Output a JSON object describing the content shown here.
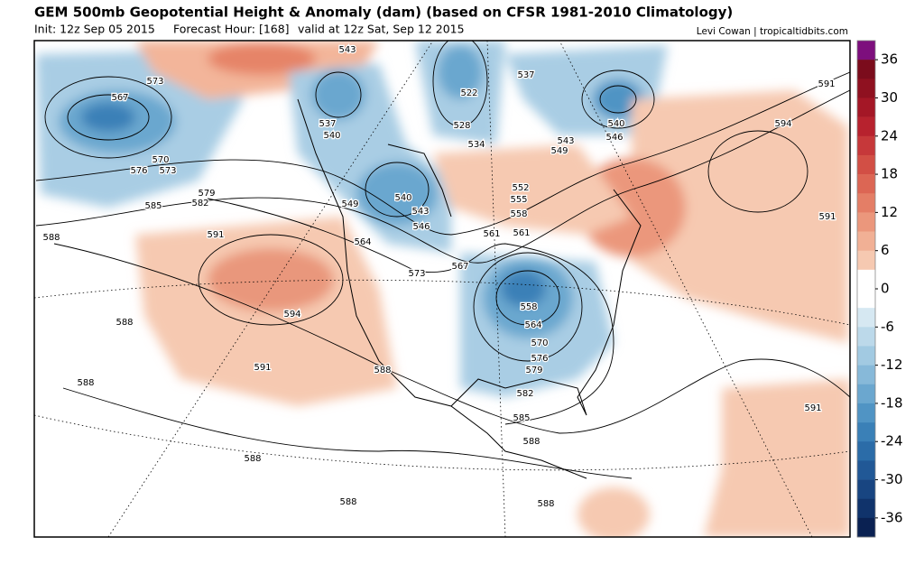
{
  "header": {
    "title": "GEM 500mb Geopotential Height & Anomaly (dam) (based on CFSR 1981-2010 Climatology)",
    "init": "Init: 12z Sep 05 2015",
    "forecast_hour": "Forecast Hour: [168]",
    "valid": "valid at 12z Sat, Sep 12 2015",
    "credit": "Levi Cowan | tropicaltidbits.com"
  },
  "colorbar": {
    "lim": [
      -39,
      39
    ],
    "ticks": [
      36,
      30,
      24,
      18,
      12,
      6,
      0,
      -6,
      -12,
      -18,
      -24,
      -30,
      -36
    ],
    "colors": [
      "#7d0f7d",
      "#7b0c1c",
      "#8f1120",
      "#a41726",
      "#b7222e",
      "#c6383a",
      "#d24f45",
      "#dc6654",
      "#e47e66",
      "#eb977c",
      "#f1b095",
      "#f6c9b1",
      "#ffffff",
      "#ffffff",
      "#d6e8f2",
      "#bcd9ea",
      "#a2cae2",
      "#87b9d9",
      "#6ba7cf",
      "#5094c4",
      "#3a80b7",
      "#2b6ca8",
      "#215896",
      "#184581",
      "#10336b",
      "#0a2152"
    ]
  },
  "contour_labels": [
    "543",
    "573",
    "567",
    "537",
    "540",
    "522",
    "528",
    "534",
    "537",
    "540",
    "546",
    "543",
    "549",
    "591",
    "594",
    "570",
    "576",
    "573",
    "579",
    "582",
    "585",
    "540",
    "543",
    "546",
    "549",
    "552",
    "555",
    "558",
    "561",
    "561",
    "564",
    "567",
    "573",
    "588",
    "591",
    "591",
    "558",
    "564",
    "570",
    "576",
    "579",
    "582",
    "585",
    "588",
    "594",
    "588",
    "588",
    "591",
    "588",
    "591",
    "588",
    "588",
    "588"
  ]
}
